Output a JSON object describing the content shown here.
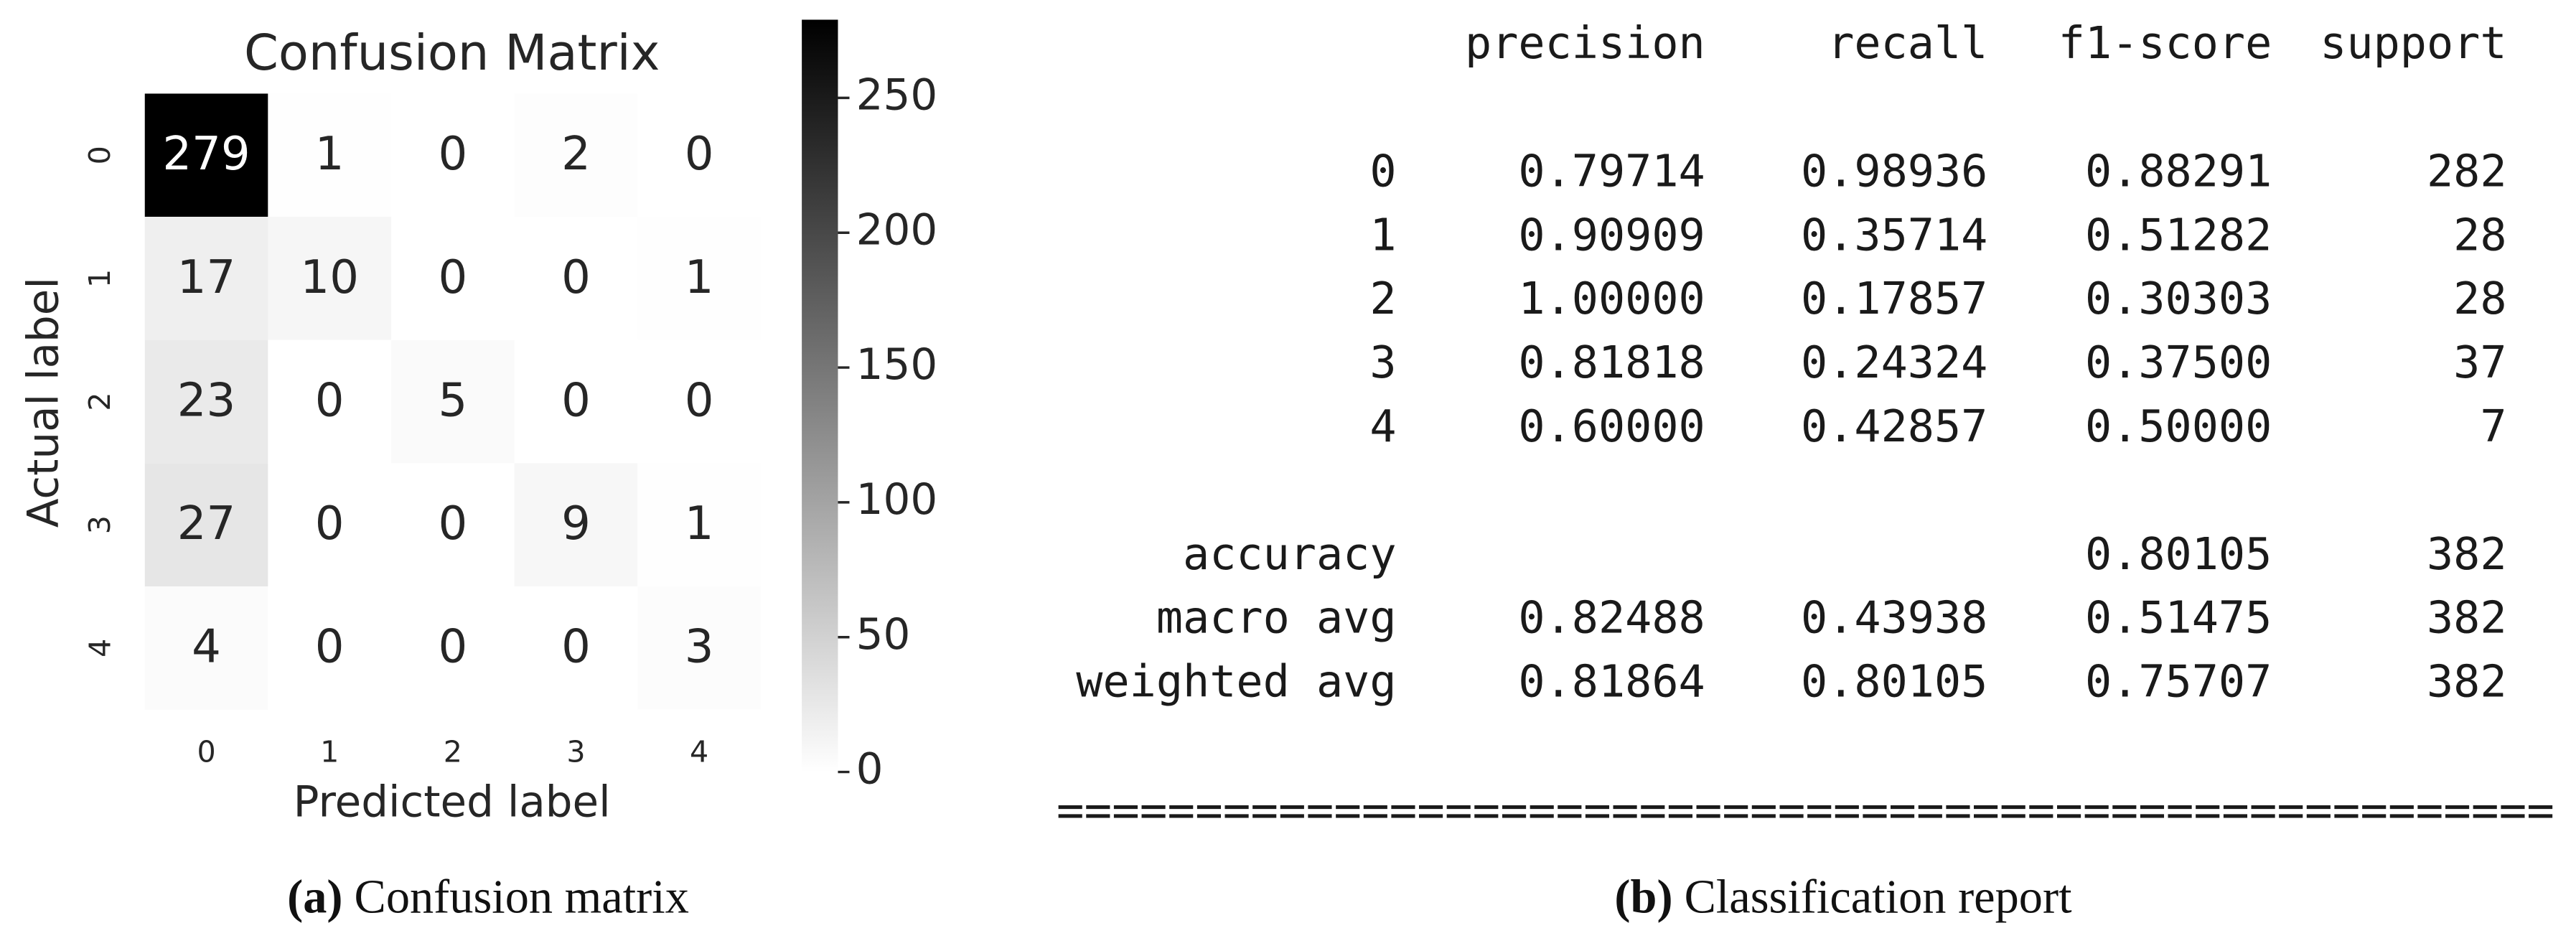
{
  "chart_data": {
    "type": "heatmap",
    "title": "Confusion Matrix",
    "x_label": "Predicted label",
    "y_label": "Actual label",
    "x_categories": [
      "0",
      "1",
      "2",
      "3",
      "4"
    ],
    "y_categories": [
      "0",
      "1",
      "2",
      "3",
      "4"
    ],
    "values": [
      [
        279,
        1,
        0,
        2,
        0
      ],
      [
        17,
        10,
        0,
        0,
        1
      ],
      [
        23,
        0,
        5,
        0,
        0
      ],
      [
        27,
        0,
        0,
        9,
        1
      ],
      [
        4,
        0,
        0,
        0,
        3
      ]
    ],
    "clim": [
      0,
      279
    ],
    "colorbar_ticks": [
      0,
      50,
      100,
      150,
      200,
      250
    ],
    "colormap": [
      "#ffffff",
      "#000000"
    ]
  },
  "report": {
    "columns": [
      "precision",
      "recall",
      "f1-score",
      "support"
    ],
    "rows": [
      {
        "label": "0",
        "values": [
          "0.79714",
          "0.98936",
          "0.88291",
          "282"
        ]
      },
      {
        "label": "1",
        "values": [
          "0.90909",
          "0.35714",
          "0.51282",
          "28"
        ]
      },
      {
        "label": "2",
        "values": [
          "1.00000",
          "0.17857",
          "0.30303",
          "28"
        ]
      },
      {
        "label": "3",
        "values": [
          "0.81818",
          "0.24324",
          "0.37500",
          "37"
        ]
      },
      {
        "label": "4",
        "values": [
          "0.60000",
          "0.42857",
          "0.50000",
          "7"
        ]
      }
    ],
    "summary_rows": [
      {
        "label": "accuracy",
        "values": [
          null,
          null,
          "0.80105",
          "382"
        ]
      },
      {
        "label": "macro avg",
        "values": [
          "0.82488",
          "0.43938",
          "0.51475",
          "382"
        ]
      },
      {
        "label": "weighted avg",
        "values": [
          "0.81864",
          "0.80105",
          "0.75707",
          "382"
        ]
      }
    ],
    "separator": "======================================================"
  },
  "captions": [
    {
      "label": "(a)",
      "text": "Confusion matrix"
    },
    {
      "label": "(b)",
      "text": "Classification report"
    }
  ]
}
